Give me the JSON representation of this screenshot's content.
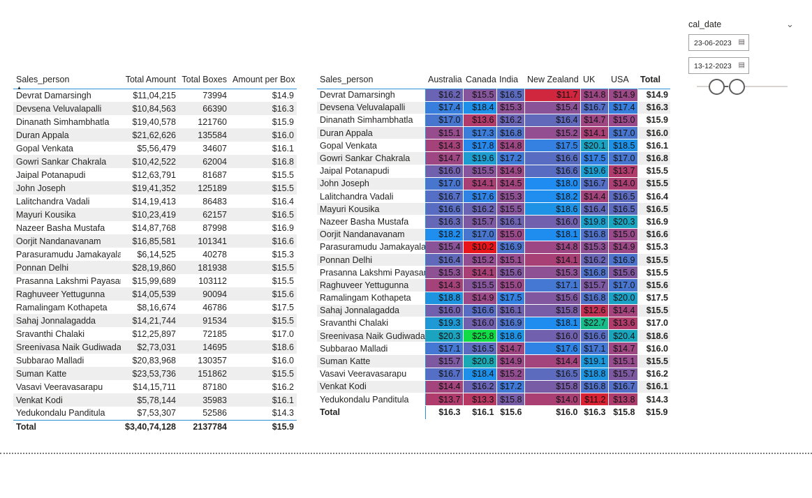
{
  "table1": {
    "headers": [
      "Sales_person",
      "Total Amount",
      "Total Boxes",
      "Amount per Box"
    ],
    "rows": [
      [
        "Devrat Damarsingh",
        "$11,04,215",
        "73994",
        "$14.9"
      ],
      [
        "Devsena Veluvalapalli",
        "$10,84,563",
        "66390",
        "$16.3"
      ],
      [
        "Dinanath Simhambhatla",
        "$19,40,578",
        "121760",
        "$15.9"
      ],
      [
        "Duran Appala",
        "$21,62,626",
        "135584",
        "$16.0"
      ],
      [
        "Gopal Venkata",
        "$5,56,479",
        "34607",
        "$16.1"
      ],
      [
        "Gowri Sankar Chakrala",
        "$10,42,522",
        "62004",
        "$16.8"
      ],
      [
        "Jaipal Potanapudi",
        "$12,63,791",
        "81687",
        "$15.5"
      ],
      [
        "John Joseph",
        "$19,41,352",
        "125189",
        "$15.5"
      ],
      [
        "Lalitchandra Vadali",
        "$14,19,413",
        "86483",
        "$16.4"
      ],
      [
        "Mayuri Kousika",
        "$10,23,419",
        "62157",
        "$16.5"
      ],
      [
        "Nazeer Basha Mustafa",
        "$14,87,768",
        "87998",
        "$16.9"
      ],
      [
        "Oorjit Nandanavanam",
        "$16,85,581",
        "101341",
        "$16.6"
      ],
      [
        "Parasuramudu Jamakayala",
        "$6,14,525",
        "40278",
        "$15.3"
      ],
      [
        "Ponnan Delhi",
        "$28,19,860",
        "181938",
        "$15.5"
      ],
      [
        "Prasanna Lakshmi Payasam",
        "$15,99,689",
        "103112",
        "$15.5"
      ],
      [
        "Raghuveer Yettugunna",
        "$14,05,539",
        "90094",
        "$15.6"
      ],
      [
        "Ramalingam Kothapeta",
        "$8,16,674",
        "46786",
        "$17.5"
      ],
      [
        "Sahaj Jonnalagadda",
        "$14,21,744",
        "91534",
        "$15.5"
      ],
      [
        "Sravanthi Chalaki",
        "$12,25,897",
        "72185",
        "$17.0"
      ],
      [
        "Sreenivasa Naik Gudiwada",
        "$2,73,031",
        "14695",
        "$18.6"
      ],
      [
        "Subbarao Malladi",
        "$20,83,968",
        "130357",
        "$16.0"
      ],
      [
        "Suman Katte",
        "$23,53,736",
        "151862",
        "$15.5"
      ],
      [
        "Vasavi Veeravasarapu",
        "$14,15,711",
        "87180",
        "$16.2"
      ],
      [
        "Venkat Kodi",
        "$5,78,144",
        "35983",
        "$16.1"
      ],
      [
        "Yedukondalu Panditula",
        "$7,53,307",
        "52586",
        "$14.3"
      ]
    ],
    "total": [
      "Total",
      "$3,40,74,128",
      "2137784",
      "$15.9"
    ]
  },
  "table2": {
    "headers": [
      "Sales_person",
      "Australia",
      "Canada",
      "India",
      "New Zealand",
      "UK",
      "USA",
      "Total"
    ],
    "rows": [
      [
        "Devrat Damarsingh",
        "$16.2",
        "$15.5",
        "$16.5",
        "$11.7",
        "$14.8",
        "$14.9",
        "$14.9"
      ],
      [
        "Devsena Veluvalapalli",
        "$17.4",
        "$18.4",
        "$15.3",
        "$15.4",
        "$16.7",
        "$17.4",
        "$16.3"
      ],
      [
        "Dinanath Simhambhatla",
        "$17.0",
        "$13.6",
        "$16.2",
        "$16.4",
        "$14.7",
        "$15.0",
        "$15.9"
      ],
      [
        "Duran Appala",
        "$15.1",
        "$17.3",
        "$16.8",
        "$15.2",
        "$14.1",
        "$17.0",
        "$16.0"
      ],
      [
        "Gopal Venkata",
        "$14.3",
        "$17.8",
        "$14.8",
        "$17.5",
        "$20.1",
        "$18.5",
        "$16.1"
      ],
      [
        "Gowri Sankar Chakrala",
        "$14.7",
        "$19.6",
        "$17.2",
        "$16.6",
        "$17.5",
        "$17.0",
        "$16.8"
      ],
      [
        "Jaipal Potanapudi",
        "$16.0",
        "$15.5",
        "$14.9",
        "$16.6",
        "$19.6",
        "$13.7",
        "$15.5"
      ],
      [
        "John Joseph",
        "$17.0",
        "$14.1",
        "$14.5",
        "$18.0",
        "$16.7",
        "$14.0",
        "$15.5"
      ],
      [
        "Lalitchandra Vadali",
        "$16.7",
        "$17.6",
        "$15.3",
        "$18.2",
        "$14.4",
        "$16.5",
        "$16.4"
      ],
      [
        "Mayuri Kousika",
        "$16.6",
        "$16.2",
        "$15.5",
        "$18.6",
        "$16.4",
        "$16.5",
        "$16.5"
      ],
      [
        "Nazeer Basha Mustafa",
        "$16.3",
        "$15.7",
        "$16.1",
        "$16.0",
        "$19.8",
        "$20.3",
        "$16.9"
      ],
      [
        "Oorjit Nandanavanam",
        "$18.2",
        "$17.0",
        "$15.0",
        "$18.1",
        "$16.8",
        "$15.0",
        "$16.6"
      ],
      [
        "Parasuramudu Jamakayala",
        "$15.4",
        "$10.2",
        "$16.9",
        "$14.8",
        "$15.3",
        "$14.9",
        "$15.3"
      ],
      [
        "Ponnan Delhi",
        "$16.4",
        "$15.2",
        "$15.1",
        "$14.1",
        "$16.2",
        "$16.9",
        "$15.5"
      ],
      [
        "Prasanna Lakshmi Payasam",
        "$15.3",
        "$14.1",
        "$15.6",
        "$15.3",
        "$16.8",
        "$15.6",
        "$15.5"
      ],
      [
        "Raghuveer Yettugunna",
        "$14.3",
        "$15.5",
        "$15.0",
        "$17.1",
        "$15.7",
        "$17.0",
        "$15.6"
      ],
      [
        "Ramalingam Kothapeta",
        "$18.8",
        "$14.9",
        "$17.5",
        "$15.6",
        "$16.8",
        "$20.0",
        "$17.5"
      ],
      [
        "Sahaj Jonnalagadda",
        "$16.0",
        "$16.6",
        "$16.1",
        "$15.8",
        "$12.6",
        "$14.4",
        "$15.5"
      ],
      [
        "Sravanthi Chalaki",
        "$19.3",
        "$16.0",
        "$16.9",
        "$18.1",
        "$22.7",
        "$13.6",
        "$17.0"
      ],
      [
        "Sreenivasa Naik Gudiwada",
        "$20.3",
        "$25.8",
        "$18.6",
        "$16.0",
        "$16.6",
        "$20.4",
        "$18.6"
      ],
      [
        "Subbarao Malladi",
        "$17.1",
        "$16.5",
        "$14.7",
        "$17.6",
        "$17.1",
        "$14.7",
        "$16.0"
      ],
      [
        "Suman Katte",
        "$15.7",
        "$20.8",
        "$14.9",
        "$14.4",
        "$19.1",
        "$15.1",
        "$15.5"
      ],
      [
        "Vasavi Veeravasarapu",
        "$16.7",
        "$18.4",
        "$15.2",
        "$16.5",
        "$18.8",
        "$15.7",
        "$16.2"
      ],
      [
        "Venkat Kodi",
        "$14.4",
        "$16.2",
        "$17.2",
        "$15.8",
        "$16.8",
        "$16.7",
        "$16.1"
      ],
      [
        "Yedukondalu Panditula",
        "$13.7",
        "$13.3",
        "$15.8",
        "$14.0",
        "$11.2",
        "$13.8",
        "$14.3"
      ]
    ],
    "total": [
      "Total",
      "$16.3",
      "$16.1",
      "$15.6",
      "$16.0",
      "$16.3",
      "$15.8",
      "$15.9"
    ],
    "color_scale": {
      "low_color": "#e8161b",
      "mid_color": "#9a4a8a",
      "high_color": "#1f8cf2",
      "top_color": "#11dc45"
    }
  },
  "slicer": {
    "title": "cal_date",
    "start_date": "23-06-2023",
    "end_date": "13-12-2023"
  },
  "icons": {
    "chevron": "chevron-down-icon",
    "calendar": "calendar-icon",
    "sort": "sort-ascending-icon"
  }
}
